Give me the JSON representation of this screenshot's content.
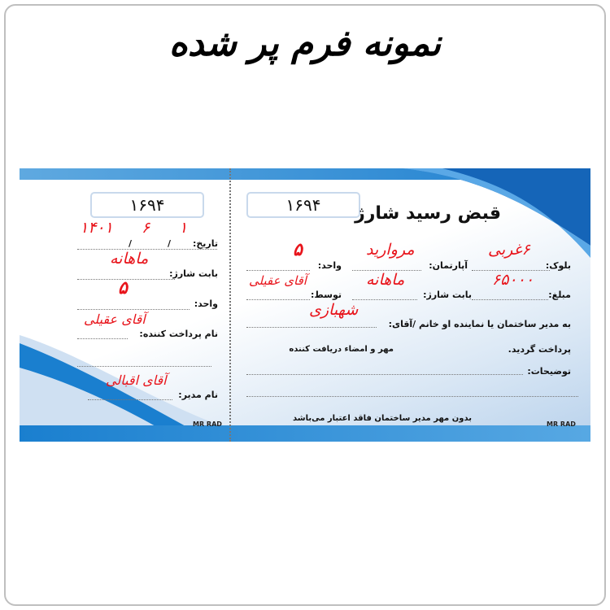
{
  "heading": "نمونه فرم پر شده",
  "stub": {
    "number": "۱۶۹۴",
    "date_label": "تاریخ:",
    "date_day": "۱",
    "date_month": "۶",
    "date_year": "۱۴۰۱",
    "date_sep": "/",
    "charge_label": "بابت شارژ:",
    "charge_value": "ماهانه",
    "unit_label": "واحد:",
    "unit_value": "۵",
    "payer_label": "نام پرداخت کننده:",
    "payer_value": "آقای عقیلی",
    "manager_label": "نام مدیر:",
    "manager_value": "آقای اقبالی",
    "brand": "MR RAD"
  },
  "receipt": {
    "number": "۱۶۹۴",
    "title": "قبض رسید شارژ",
    "block_label": "بلوک:",
    "block_value": "۶غربی",
    "apartment_label": "آپارتمان:",
    "apartment_value": "مروارید",
    "unit_label": "واحد:",
    "unit_value": "۵",
    "amount_label": "مبلغ:",
    "amount_value": "۶۵۰۰۰",
    "charge_label": "بابت شارژ:",
    "charge_value": "ماهانه",
    "by_label": "توسط:",
    "by_value": "آقای عقیلی",
    "to_label": "به مدیر ساختمان یا نماینده او خانم /آقای:",
    "to_value": "شهبازی",
    "paid_label": "پرداخت گردید.",
    "signature_label": "مهر و امضاء دریافت کننده",
    "notes_label": "توضیحات:",
    "footer_note": "بدون مهر مدیر ساختمان فاقد اعتبار می‌باشد",
    "brand": "MR RAD"
  },
  "colors": {
    "accent": "#1d7fcf",
    "handwriting": "#e8141b"
  }
}
